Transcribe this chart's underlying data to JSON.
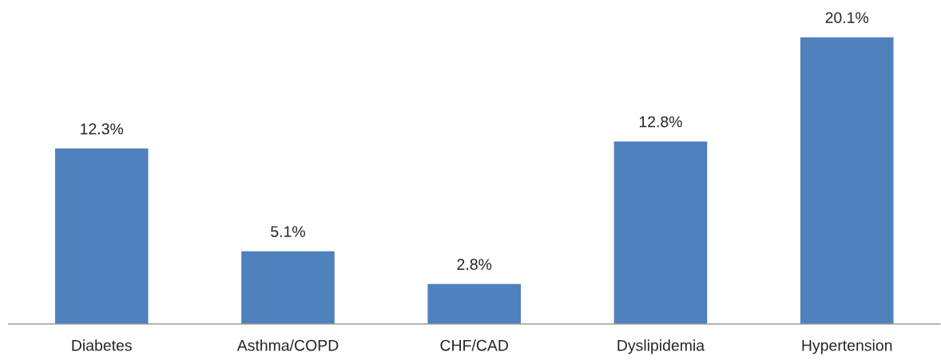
{
  "chart_data": {
    "type": "bar",
    "categories": [
      "Diabetes",
      "Asthma/COPD",
      "CHF/CAD",
      "Dyslipidemia",
      "Hypertension"
    ],
    "values": [
      12.3,
      5.1,
      2.8,
      12.8,
      20.1
    ],
    "value_labels": [
      "12.3%",
      "5.1%",
      "2.8%",
      "12.8%",
      "20.1%"
    ],
    "color": "#4f81bd",
    "grid": false,
    "legend": false
  }
}
